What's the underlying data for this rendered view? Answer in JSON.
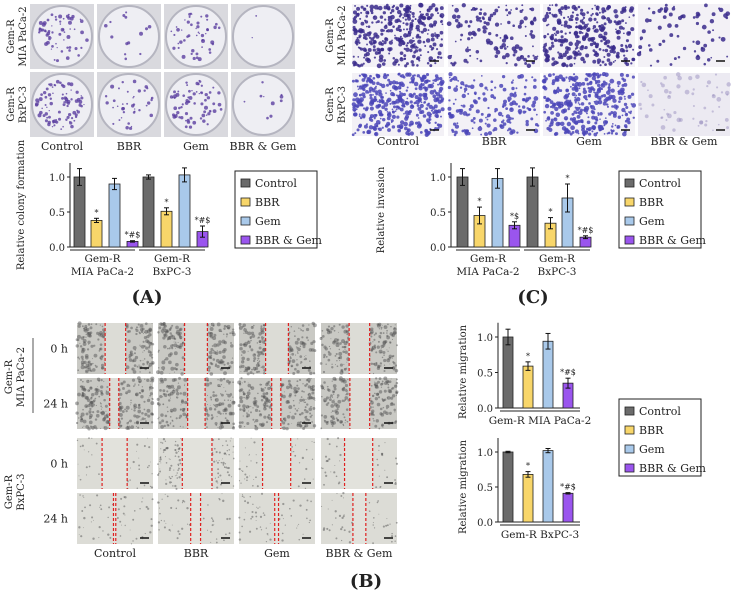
{
  "panel_labels": {
    "A": "(A)",
    "B": "(B)",
    "C": "(C)"
  },
  "conditions": [
    "Control",
    "BBR",
    "Gem",
    "BBR & Gem"
  ],
  "cell_lines": [
    {
      "line1": "Gem-R",
      "line2": "MIA PaCa-2"
    },
    {
      "line1": "Gem-R",
      "line2": "BxPC-3"
    }
  ],
  "timepoints": [
    "0 h",
    "24 h"
  ],
  "colors": {
    "Control": "#6b6b6b",
    "BBR": "#f8d66a",
    "Gem": "#a9c9ea",
    "BBR & Gem": "#9a55ee",
    "wound_line": "#e02020"
  },
  "legend": [
    "Control",
    "BBR",
    "Gem",
    "BBR & Gem"
  ],
  "chart_data": [
    {
      "id": "A",
      "type": "bar",
      "ylabel": "Relative colony formation",
      "ylim": [
        0,
        1.2
      ],
      "yticks": [
        "0.0",
        "0.5",
        "1.0"
      ],
      "categories": [
        "Gem-R MIA PaCa-2",
        "Gem-R BxPC-3"
      ],
      "legend": "right",
      "series": [
        {
          "name": "Control",
          "values": [
            1.0,
            1.0
          ],
          "errors": [
            0.12,
            0.03
          ],
          "annotations": [
            "",
            ""
          ]
        },
        {
          "name": "BBR",
          "values": [
            0.38,
            0.51
          ],
          "errors": [
            0.03,
            0.05
          ],
          "annotations": [
            "*",
            "*"
          ]
        },
        {
          "name": "Gem",
          "values": [
            0.9,
            1.03
          ],
          "errors": [
            0.08,
            0.1
          ],
          "annotations": [
            "",
            ""
          ]
        },
        {
          "name": "BBR & Gem",
          "values": [
            0.08,
            0.22
          ],
          "errors": [
            0.01,
            0.08
          ],
          "annotations": [
            "*#$",
            "*#$"
          ]
        }
      ]
    },
    {
      "id": "C",
      "type": "bar",
      "ylabel": "Relative invasion",
      "ylim": [
        0,
        1.2
      ],
      "yticks": [
        "0.0",
        "0.5",
        "1.0"
      ],
      "categories": [
        "Gem-R MIA PaCa-2",
        "Gem-R BxPC-3"
      ],
      "legend": "right",
      "series": [
        {
          "name": "Control",
          "values": [
            1.0,
            1.0
          ],
          "errors": [
            0.12,
            0.13
          ],
          "annotations": [
            "",
            ""
          ]
        },
        {
          "name": "BBR",
          "values": [
            0.45,
            0.34
          ],
          "errors": [
            0.12,
            0.08
          ],
          "annotations": [
            "*",
            "*"
          ]
        },
        {
          "name": "Gem",
          "values": [
            0.98,
            0.7
          ],
          "errors": [
            0.14,
            0.2
          ],
          "annotations": [
            "",
            "*"
          ]
        },
        {
          "name": "BBR & Gem",
          "values": [
            0.31,
            0.14
          ],
          "errors": [
            0.05,
            0.02
          ],
          "annotations": [
            "*$",
            "*#$"
          ]
        }
      ]
    },
    {
      "id": "B-top",
      "type": "bar",
      "ylabel": "Relative migration",
      "ylim": [
        0,
        1.2
      ],
      "yticks": [
        "0.0",
        "0.5",
        "1.0"
      ],
      "categories": [
        "Gem-R MIA PaCa-2"
      ],
      "legend": "right",
      "series": [
        {
          "name": "Control",
          "values": [
            1.0
          ],
          "errors": [
            0.11
          ],
          "annotations": [
            ""
          ]
        },
        {
          "name": "BBR",
          "values": [
            0.59
          ],
          "errors": [
            0.06
          ],
          "annotations": [
            "*"
          ]
        },
        {
          "name": "Gem",
          "values": [
            0.94
          ],
          "errors": [
            0.11
          ],
          "annotations": [
            ""
          ]
        },
        {
          "name": "BBR & Gem",
          "values": [
            0.35
          ],
          "errors": [
            0.07
          ],
          "annotations": [
            "*#$"
          ]
        }
      ]
    },
    {
      "id": "B-bottom",
      "type": "bar",
      "ylabel": "Relative migration",
      "ylim": [
        0,
        1.2
      ],
      "yticks": [
        "0.0",
        "0.5",
        "1.0"
      ],
      "categories": [
        "Gem-R BxPC-3"
      ],
      "legend": "right",
      "series": [
        {
          "name": "Control",
          "values": [
            1.0
          ],
          "errors": [
            0.01
          ],
          "annotations": [
            ""
          ]
        },
        {
          "name": "BBR",
          "values": [
            0.68
          ],
          "errors": [
            0.04
          ],
          "annotations": [
            "*"
          ]
        },
        {
          "name": "Gem",
          "values": [
            1.02
          ],
          "errors": [
            0.03
          ],
          "annotations": [
            ""
          ]
        },
        {
          "name": "BBR & Gem",
          "values": [
            0.41
          ],
          "errors": [
            0.01
          ],
          "annotations": [
            "*#$"
          ]
        }
      ]
    }
  ]
}
